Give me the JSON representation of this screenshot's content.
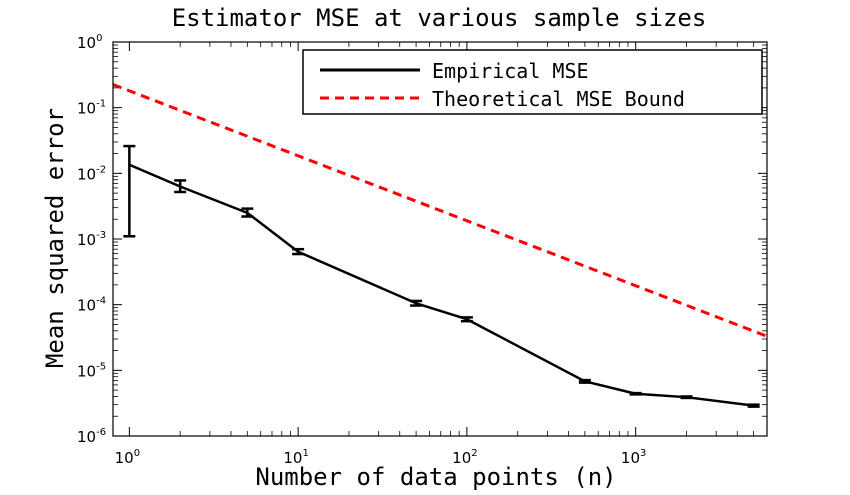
{
  "chart_data": {
    "type": "line",
    "title": "Estimator MSE at various sample sizes",
    "xlabel": "Number of data points (n)",
    "ylabel": "Mean squared error",
    "xscale": "log",
    "yscale": "log",
    "xlim": [
      0.8,
      6000
    ],
    "ylim": [
      1e-06,
      1
    ],
    "x_ticks": [
      {
        "value": 1,
        "base": "10",
        "exp": "0"
      },
      {
        "value": 10,
        "base": "10",
        "exp": "1"
      },
      {
        "value": 100,
        "base": "10",
        "exp": "2"
      },
      {
        "value": 1000,
        "base": "10",
        "exp": "3"
      }
    ],
    "y_ticks": [
      {
        "value": 1e-06,
        "base": "10",
        "exp": "-6"
      },
      {
        "value": 1e-05,
        "base": "10",
        "exp": "-5"
      },
      {
        "value": 0.0001,
        "base": "10",
        "exp": "-4"
      },
      {
        "value": 0.001,
        "base": "10",
        "exp": "-3"
      },
      {
        "value": 0.01,
        "base": "10",
        "exp": "-2"
      },
      {
        "value": 0.1,
        "base": "10",
        "exp": "-1"
      },
      {
        "value": 1,
        "base": "10",
        "exp": "0"
      }
    ],
    "legend_position": "top-right",
    "series": [
      {
        "name": "Empirical MSE",
        "style": "solid",
        "color": "#000000",
        "points": [
          {
            "x": 1,
            "y": 0.0135,
            "err_low": 0.0011,
            "err_high": 0.026
          },
          {
            "x": 2,
            "y": 0.0063,
            "err_low": 0.0052,
            "err_high": 0.0078
          },
          {
            "x": 5,
            "y": 0.0025,
            "err_low": 0.0022,
            "err_high": 0.0029
          },
          {
            "x": 10,
            "y": 0.00064,
            "err_low": 0.00059,
            "err_high": 0.0007
          },
          {
            "x": 50,
            "y": 0.000105,
            "err_low": 9.7e-05,
            "err_high": 0.000114
          },
          {
            "x": 100,
            "y": 6e-05,
            "err_low": 5.6e-05,
            "err_high": 6.4e-05
          },
          {
            "x": 500,
            "y": 6.8e-06,
            "err_low": 6.5e-06,
            "err_high": 7.1e-06
          },
          {
            "x": 1000,
            "y": 4.4e-06,
            "err_low": 4.3e-06,
            "err_high": 4.5e-06
          },
          {
            "x": 2000,
            "y": 3.9e-06,
            "err_low": 3.8e-06,
            "err_high": 4e-06
          },
          {
            "x": 5000,
            "y": 2.9e-06,
            "err_low": 2.8e-06,
            "err_high": 3e-06
          }
        ]
      },
      {
        "name": "Theoretical MSE Bound",
        "style": "dashed",
        "color": "#ff0000",
        "points": [
          {
            "x": 0.8,
            "y": 0.225
          },
          {
            "x": 6000,
            "y": 3.3e-05
          }
        ]
      }
    ]
  }
}
